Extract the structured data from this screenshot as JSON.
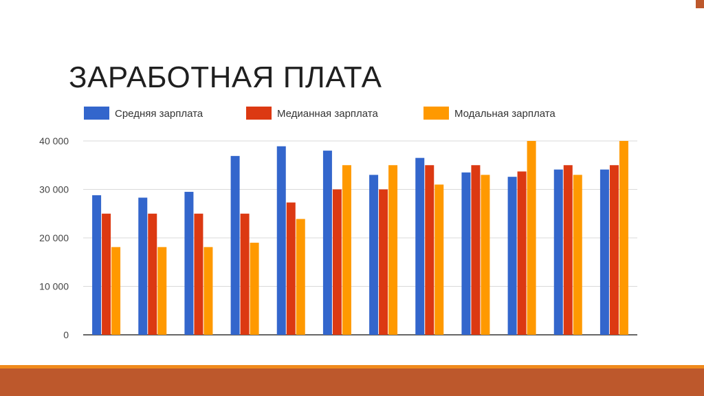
{
  "slide": {
    "title": "ЗАРАБОТНАЯ ПЛАТА"
  },
  "colors": {
    "series": [
      "#3366cc",
      "#dc3912",
      "#ff9900"
    ],
    "footer_bar": "#bd582c",
    "footer_accent": "#f08a1c"
  },
  "chart_data": {
    "type": "bar",
    "title": "",
    "xlabel": "",
    "ylabel": "",
    "ylim": [
      0,
      40000
    ],
    "yticks": [
      0,
      10000,
      20000,
      30000,
      40000
    ],
    "ytick_labels": [
      "0",
      "10 000",
      "20 000",
      "30 000",
      "40 000"
    ],
    "grid": true,
    "legend_position": "top",
    "categories": [
      "",
      "",
      "",
      "",
      "",
      "",
      "",
      "",
      "",
      "",
      "",
      ""
    ],
    "series": [
      {
        "name": "Средняя зарплата",
        "values": [
          28800,
          28300,
          29500,
          36900,
          38900,
          38000,
          33000,
          36500,
          33500,
          32600,
          34100,
          34100
        ]
      },
      {
        "name": "Медианная зарплата",
        "values": [
          25000,
          25000,
          25000,
          25000,
          27300,
          30000,
          30000,
          35000,
          35000,
          33700,
          35000,
          35000
        ]
      },
      {
        "name": "Модальная зарплата",
        "values": [
          18100,
          18100,
          18100,
          19000,
          23900,
          35000,
          35000,
          31000,
          33000,
          40000,
          33000,
          40000
        ]
      }
    ]
  }
}
